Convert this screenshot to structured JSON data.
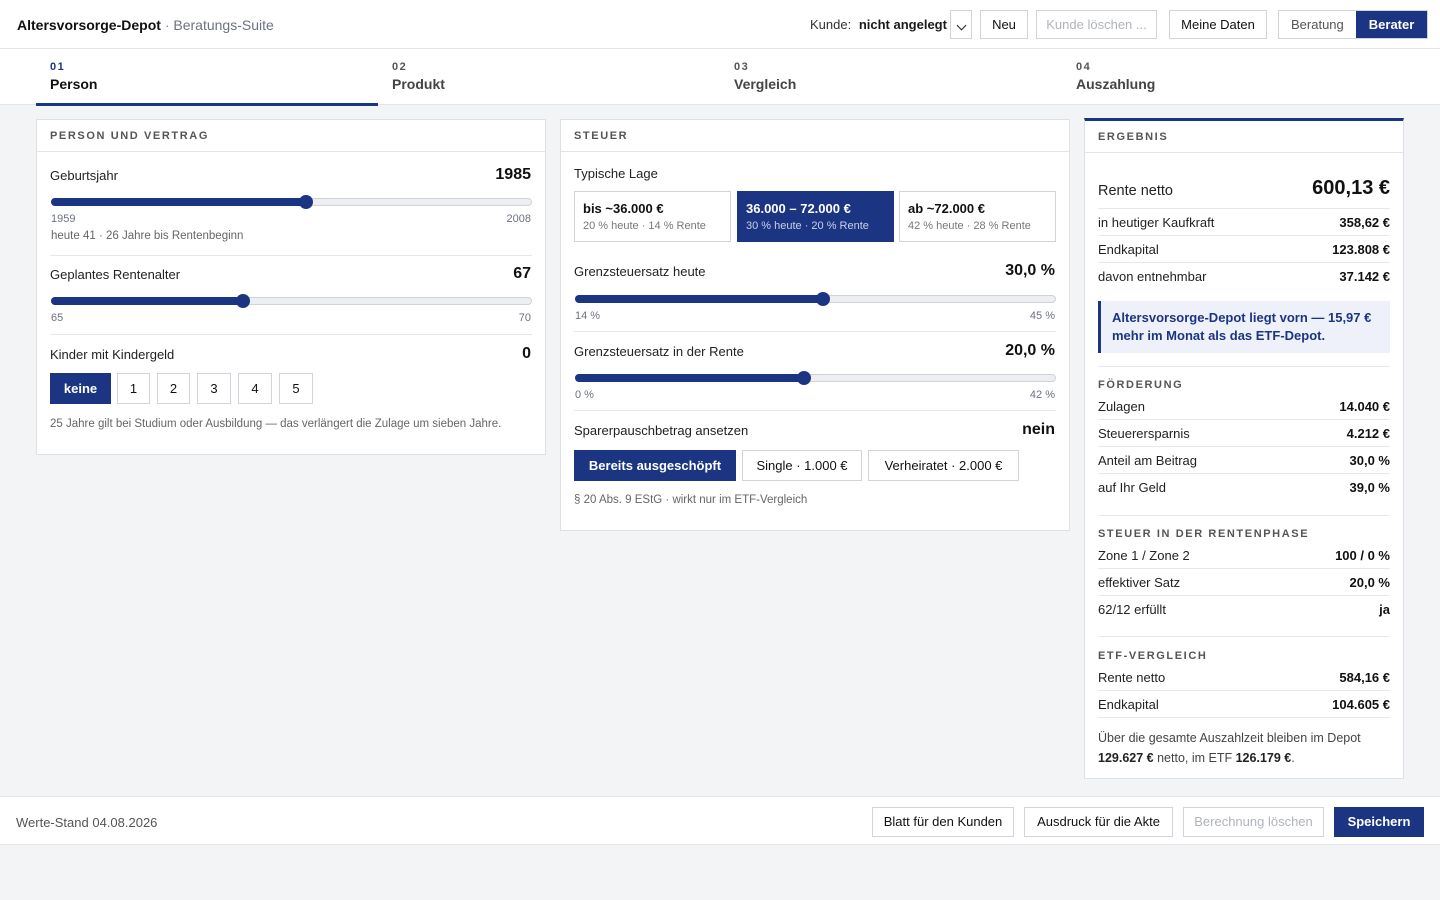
{
  "header": {
    "app_name": "Altersvorsorge-Depot",
    "separator": "·",
    "suite": "Beratungs-Suite",
    "kunde_label": "Kunde:",
    "kunde_value": "nicht angelegt",
    "new_label": "Neu",
    "delete_customer_label": "Kunde löschen ...",
    "my_data_label": "Meine Daten",
    "mode_beratung": "Beratung",
    "mode_berater": "Berater",
    "active_mode": "Berater"
  },
  "steps": [
    {
      "num": "01",
      "label": "Person",
      "active": true
    },
    {
      "num": "02",
      "label": "Produkt",
      "active": false
    },
    {
      "num": "03",
      "label": "Vergleich",
      "active": false
    },
    {
      "num": "04",
      "label": "Auszahlung",
      "active": false
    }
  ],
  "person": {
    "title": "PERSON UND VERTRAG",
    "birth_year": {
      "label": "Geburtsjahr",
      "value": "1985",
      "min": "1959",
      "max": "2008",
      "level": 26,
      "range": 49,
      "hint": "heute 41 · 26 Jahre bis Rentenbeginn"
    },
    "retirement_age": {
      "label": "Geplantes Rentenalter",
      "value": "67",
      "min": "65",
      "max": "70",
      "level": 2,
      "range": 5
    },
    "children": {
      "label": "Kinder mit Kindergeld",
      "value": "0",
      "options": [
        "keine",
        "1",
        "2",
        "3",
        "4",
        "5"
      ],
      "selected": "keine",
      "note": "25 Jahre gilt bei Studium oder Ausbildung — das verlängert die Zulage um sieben Jahre."
    }
  },
  "tax": {
    "title": "STEUER",
    "situation_label": "Typische Lage",
    "cards": [
      {
        "title": "bis ~36.000 €",
        "sub": "20 % heute · 14 % Rente",
        "active": false
      },
      {
        "title": "36.000 – 72.000 €",
        "sub": "30 % heute · 20 % Rente",
        "active": true
      },
      {
        "title": "ab ~72.000 €",
        "sub": "42 % heute · 28 % Rente",
        "active": false
      }
    ],
    "rate_today": {
      "label": "Grenzsteuersatz heute",
      "value": "30,0 %",
      "min": "14 %",
      "max": "45 %",
      "level": 30,
      "lo": 14,
      "hi": 45
    },
    "rate_retire": {
      "label": "Grenzsteuersatz in der Rente",
      "value": "20,0 %",
      "min": "0 %",
      "max": "42 %",
      "level": 20,
      "lo": 0,
      "hi": 42
    },
    "saver": {
      "label": "Sparerpauschbetrag ansetzen",
      "value": "nein",
      "options": [
        "Bereits ausgeschöpft",
        "Single · 1.000 €",
        "Verheiratet · 2.000 €"
      ],
      "selected": "Bereits ausgeschöpft",
      "note": "§ 20 Abs. 9 EStG · wirkt nur im ETF-Vergleich"
    }
  },
  "result": {
    "title": "ERGEBNIS",
    "rente_netto_label": "Rente netto",
    "rente_netto_value": "600,13 €",
    "rows": [
      {
        "label": "in heutiger Kaufkraft",
        "value": "358,62 €"
      },
      {
        "label": "Endkapital",
        "value": "123.808 €"
      },
      {
        "label": "davon entnehmbar",
        "value": "37.142 €"
      }
    ],
    "callout": "Altersvorsorge-Depot liegt vorn — 15,97 € mehr im Monat als das ETF-Depot.",
    "foerderung_title": "FÖRDERUNG",
    "foerderung": [
      {
        "label": "Zulagen",
        "value": "14.040 €"
      },
      {
        "label": "Steuerersparnis",
        "value": "4.212 €"
      },
      {
        "label": "Anteil am Beitrag",
        "value": "30,0 %"
      },
      {
        "label": "auf Ihr Geld",
        "value": "39,0 %"
      }
    ],
    "steuer_title": "STEUER IN DER RENTENPHASE",
    "steuer": [
      {
        "label": "Zone 1 / Zone 2",
        "value": "100 / 0 %"
      },
      {
        "label": "effektiver Satz",
        "value": "20,0 %"
      },
      {
        "label": "62/12 erfüllt",
        "value": "ja"
      }
    ],
    "etf_title": "ETF-VERGLEICH",
    "etf": [
      {
        "label": "Rente netto",
        "value": "584,16 €"
      },
      {
        "label": "Endkapital",
        "value": "104.605 €"
      }
    ],
    "summary_a": "Über die gesamte Auszahlzeit bleiben im Depot",
    "summary_depot": "129.627 €",
    "summary_b": "netto, im ETF",
    "summary_etf": "126.179 €",
    "summary_end": "."
  },
  "footer": {
    "stand": "Werte-Stand 04.08.2026",
    "btn_customer_sheet": "Blatt für den Kunden",
    "btn_print": "Ausdruck für die Akte",
    "btn_delete": "Berechnung löschen",
    "btn_save": "Speichern"
  },
  "colors": {
    "accent": "#1c3582"
  }
}
